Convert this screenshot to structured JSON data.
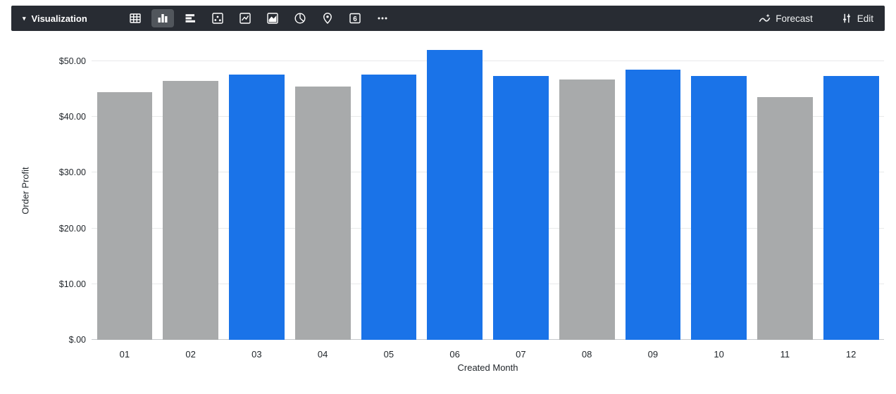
{
  "toolbar": {
    "title": "Visualization",
    "caret": "▾",
    "viz_types": [
      {
        "name": "table",
        "selected": false
      },
      {
        "name": "column",
        "selected": true
      },
      {
        "name": "bar",
        "selected": false
      },
      {
        "name": "scatter",
        "selected": false
      },
      {
        "name": "line",
        "selected": false
      },
      {
        "name": "area",
        "selected": false
      },
      {
        "name": "pie",
        "selected": false
      },
      {
        "name": "map",
        "selected": false
      },
      {
        "name": "single-value",
        "selected": false,
        "glyph": "6"
      },
      {
        "name": "more",
        "selected": false
      }
    ],
    "forecast_label": "Forecast",
    "edit_label": "Edit"
  },
  "colors": {
    "toolbar_bg": "#282c33",
    "selected_icon_bg": "#51565c",
    "bar_blue": "#1a73e8",
    "bar_gray": "#a8aaab"
  },
  "chart_data": {
    "type": "bar",
    "title": "",
    "xlabel": "Created Month",
    "ylabel": "Order Profit",
    "categories": [
      "01",
      "02",
      "03",
      "04",
      "05",
      "06",
      "07",
      "08",
      "09",
      "10",
      "11",
      "12"
    ],
    "values": [
      44.5,
      46.5,
      47.6,
      45.5,
      47.6,
      52.0,
      47.3,
      46.7,
      48.5,
      47.3,
      43.6,
      47.3
    ],
    "bar_colors": [
      "gray",
      "gray",
      "blue",
      "gray",
      "blue",
      "blue",
      "blue",
      "gray",
      "blue",
      "blue",
      "gray",
      "blue"
    ],
    "palette": {
      "blue": "#1a73e8",
      "gray": "#a8aaab"
    },
    "ylim": [
      0,
      53.4
    ],
    "yticks": [
      {
        "value": 0,
        "label": "$.00"
      },
      {
        "value": 10,
        "label": "$10.00"
      },
      {
        "value": 20,
        "label": "$20.00"
      },
      {
        "value": 30,
        "label": "$30.00"
      },
      {
        "value": 40,
        "label": "$40.00"
      },
      {
        "value": 50,
        "label": "$50.00"
      }
    ],
    "grid": true,
    "legend": "none"
  }
}
